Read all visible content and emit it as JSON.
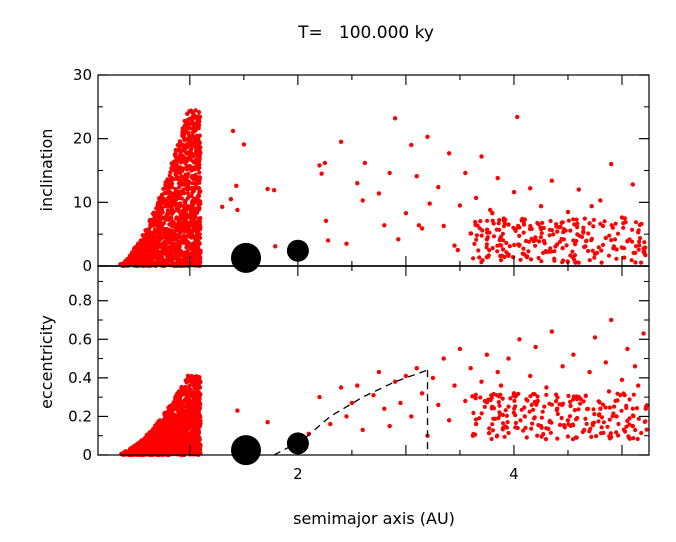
{
  "chart_data": {
    "type": "scatter",
    "title": "T=   100.000 ky",
    "xlabel": "semimajor axis (AU)",
    "xlim": [
      0.15,
      5.25
    ],
    "x_ticks": [
      2,
      4
    ],
    "x_tick_labels": [
      "2",
      "4"
    ],
    "colors": {
      "particles": "#ff0000",
      "planets": "#000000",
      "axes": "#000000"
    },
    "panels": [
      {
        "id": "inclination",
        "ylabel": "inclination",
        "ylim": [
          0,
          30
        ],
        "y_ticks": [
          0,
          10,
          20,
          30
        ],
        "y_tick_labels": [
          "0",
          "10",
          "20",
          "30"
        ],
        "reference_line_y": 0,
        "planets": [
          {
            "a": 1.52,
            "value": 0.8,
            "size": "large"
          },
          {
            "a": 2.0,
            "value": 2.4,
            "size": "small"
          }
        ],
        "dense_cluster": {
          "a_min": 0.35,
          "a_max": 1.1,
          "value_min": 0,
          "value_max": 25,
          "peak_a": 0.98
        },
        "points": [
          [
            1.4,
            21.2
          ],
          [
            1.43,
            12.6
          ],
          [
            1.44,
            8.8
          ],
          [
            1.5,
            19.1
          ],
          [
            1.72,
            12.1
          ],
          [
            1.78,
            11.9
          ],
          [
            1.79,
            3.1
          ],
          [
            1.3,
            9.3
          ],
          [
            1.38,
            10.5
          ],
          [
            2.2,
            15.8
          ],
          [
            2.22,
            14.5
          ],
          [
            2.25,
            16.2
          ],
          [
            2.26,
            7.1
          ],
          [
            2.28,
            4.0
          ],
          [
            2.4,
            19.5
          ],
          [
            2.45,
            3.5
          ],
          [
            2.55,
            13.0
          ],
          [
            2.6,
            10.3
          ],
          [
            2.62,
            16.2
          ],
          [
            2.75,
            11.4
          ],
          [
            2.8,
            6.4
          ],
          [
            2.85,
            14.6
          ],
          [
            2.9,
            23.2
          ],
          [
            2.93,
            4.2
          ],
          [
            3.0,
            8.3
          ],
          [
            3.05,
            19.0
          ],
          [
            3.1,
            14.1
          ],
          [
            3.15,
            5.9
          ],
          [
            3.2,
            20.3
          ],
          [
            3.22,
            9.8
          ],
          [
            3.3,
            12.4
          ],
          [
            3.35,
            6.3
          ],
          [
            3.4,
            17.7
          ],
          [
            3.45,
            3.2
          ],
          [
            3.5,
            9.5
          ],
          [
            3.55,
            14.6
          ],
          [
            3.6,
            5.1
          ],
          [
            3.65,
            10.7
          ],
          [
            3.7,
            17.2
          ],
          [
            3.75,
            4.2
          ],
          [
            3.8,
            8.3
          ],
          [
            3.85,
            13.8
          ],
          [
            3.9,
            2.6
          ],
          [
            3.95,
            6.5
          ],
          [
            4.0,
            11.6
          ],
          [
            4.03,
            23.4
          ],
          [
            4.05,
            3.3
          ],
          [
            4.1,
            7.3
          ],
          [
            4.15,
            12.2
          ],
          [
            4.2,
            4.1
          ],
          [
            4.25,
            9.4
          ],
          [
            4.3,
            2.2
          ],
          [
            4.35,
            13.4
          ],
          [
            4.4,
            5.4
          ],
          [
            4.45,
            2.8
          ],
          [
            4.5,
            8.5
          ],
          [
            4.55,
            4.0
          ],
          [
            4.6,
            12.0
          ],
          [
            4.65,
            3.0
          ],
          [
            4.7,
            6.7
          ],
          [
            4.75,
            1.9
          ],
          [
            4.8,
            10.3
          ],
          [
            4.85,
            4.4
          ],
          [
            4.9,
            16.0
          ],
          [
            4.95,
            2.6
          ],
          [
            5.0,
            7.6
          ],
          [
            5.05,
            3.9
          ],
          [
            5.1,
            12.8
          ],
          [
            5.15,
            5.3
          ],
          [
            5.2,
            2.2
          ],
          [
            3.12,
            6.4
          ],
          [
            3.48,
            2.5
          ],
          [
            3.78,
            8.8
          ],
          [
            4.12,
            1.4
          ],
          [
            4.42,
            6.1
          ],
          [
            4.72,
            9.4
          ],
          [
            5.02,
            1.3
          ],
          [
            5.18,
            6.6
          ]
        ],
        "outer_belt": {
          "a_min": 3.6,
          "a_max": 5.25,
          "value_min": 0.5,
          "value_max": 7.5
        }
      },
      {
        "id": "eccentricity",
        "ylabel": "eccentricity",
        "ylim": [
          0,
          0.98
        ],
        "y_ticks": [
          0,
          0.2,
          0.4,
          0.6,
          0.8
        ],
        "y_tick_labels": [
          "0",
          "0.2",
          "0.4",
          "0.6",
          "0.8"
        ],
        "planets": [
          {
            "a": 1.52,
            "value": 0.01,
            "size": "large"
          },
          {
            "a": 2.0,
            "value": 0.06,
            "size": "small"
          }
        ],
        "dense_cluster": {
          "a_min": 0.35,
          "a_max": 1.1,
          "value_min": 0,
          "value_max": 0.42,
          "peak_a": 0.98
        },
        "dashed_curve": [
          [
            1.78,
            0.0
          ],
          [
            2.05,
            0.08
          ],
          [
            2.3,
            0.2
          ],
          [
            2.6,
            0.3
          ],
          [
            2.9,
            0.38
          ],
          [
            3.2,
            0.44
          ]
        ],
        "dashed_vertical_a": 3.2,
        "points": [
          [
            1.44,
            0.23
          ],
          [
            1.5,
            0.08
          ],
          [
            1.72,
            0.17
          ],
          [
            2.1,
            0.11
          ],
          [
            2.2,
            0.3
          ],
          [
            2.3,
            0.16
          ],
          [
            2.4,
            0.35
          ],
          [
            2.45,
            0.2
          ],
          [
            2.5,
            0.27
          ],
          [
            2.55,
            0.36
          ],
          [
            2.6,
            0.13
          ],
          [
            2.7,
            0.31
          ],
          [
            2.75,
            0.43
          ],
          [
            2.8,
            0.24
          ],
          [
            2.85,
            0.15
          ],
          [
            2.9,
            0.38
          ],
          [
            2.95,
            0.27
          ],
          [
            3.0,
            0.41
          ],
          [
            3.05,
            0.2
          ],
          [
            3.1,
            0.45
          ],
          [
            3.15,
            0.32
          ],
          [
            3.2,
            0.1
          ],
          [
            3.25,
            0.4
          ],
          [
            3.3,
            0.26
          ],
          [
            3.35,
            0.5
          ],
          [
            3.4,
            0.18
          ],
          [
            3.45,
            0.36
          ],
          [
            3.5,
            0.55
          ],
          [
            3.55,
            0.28
          ],
          [
            3.6,
            0.45
          ],
          [
            3.65,
            0.16
          ],
          [
            3.7,
            0.38
          ],
          [
            3.75,
            0.52
          ],
          [
            3.8,
            0.25
          ],
          [
            3.85,
            0.43
          ],
          [
            3.9,
            0.14
          ],
          [
            3.95,
            0.5
          ],
          [
            4.0,
            0.32
          ],
          [
            4.05,
            0.6
          ],
          [
            4.1,
            0.2
          ],
          [
            4.15,
            0.41
          ],
          [
            4.2,
            0.56
          ],
          [
            4.25,
            0.15
          ],
          [
            4.3,
            0.35
          ],
          [
            4.35,
            0.64
          ],
          [
            4.4,
            0.24
          ],
          [
            4.45,
            0.46
          ],
          [
            4.5,
            0.18
          ],
          [
            4.55,
            0.52
          ],
          [
            4.6,
            0.3
          ],
          [
            4.65,
            0.13
          ],
          [
            4.7,
            0.43
          ],
          [
            4.75,
            0.61
          ],
          [
            4.8,
            0.24
          ],
          [
            4.85,
            0.48
          ],
          [
            4.9,
            0.7
          ],
          [
            4.95,
            0.2
          ],
          [
            5.0,
            0.39
          ],
          [
            5.05,
            0.55
          ],
          [
            5.1,
            0.15
          ],
          [
            5.15,
            0.36
          ],
          [
            5.2,
            0.63
          ],
          [
            5.22,
            0.24
          ],
          [
            3.62,
            0.1
          ],
          [
            3.88,
            0.36
          ],
          [
            4.22,
            0.28
          ],
          [
            4.58,
            0.09
          ],
          [
            4.88,
            0.33
          ],
          [
            5.12,
            0.46
          ]
        ],
        "outer_belt": {
          "a_min": 3.6,
          "a_max": 5.25,
          "value_min": 0.08,
          "value_max": 0.32
        }
      }
    ]
  }
}
